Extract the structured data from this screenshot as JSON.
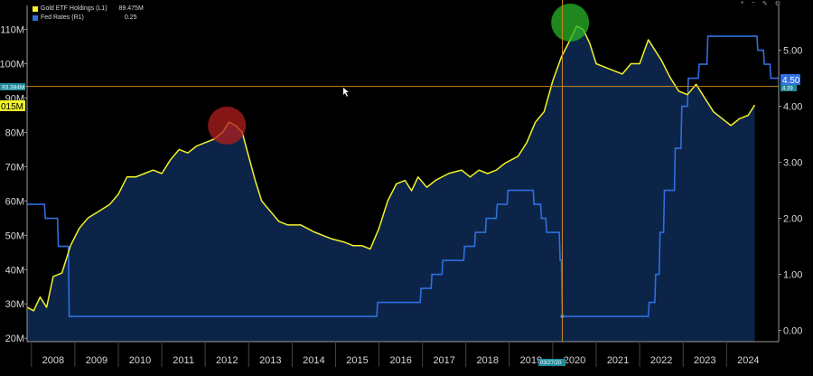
{
  "legend": {
    "gold": {
      "label": "Gold ETF Holdings (L1)",
      "value": "89.475M",
      "color": "#f2f228"
    },
    "fed": {
      "label": "Fed Rates (R1)",
      "value": "0.25",
      "color": "#2f6fe0"
    }
  },
  "toolbar_icons": [
    "plus-icon",
    "minus-icon",
    "edit-icon",
    "settings-icon"
  ],
  "markers": {
    "crosshair_left_label": "93.384M",
    "current_left_label": "015M",
    "current_right_label": "4.50",
    "crosshair_right_label": "4.39",
    "date_label": "03/27/20"
  },
  "chart_data": {
    "type": "line",
    "x_ticks": [
      "2008",
      "2009",
      "2010",
      "2011",
      "2012",
      "2013",
      "2014",
      "2015",
      "2016",
      "2017",
      "2018",
      "2019",
      "2020",
      "2021",
      "2022",
      "2023",
      "2024"
    ],
    "left_axis": {
      "ticks": [
        "20M",
        "30M",
        "40M",
        "50M",
        "60M",
        "70M",
        "80M",
        "90M",
        "100M",
        "110M"
      ],
      "range": [
        19,
        117
      ]
    },
    "right_axis": {
      "ticks": [
        "0.00",
        "1.00",
        "2.00",
        "3.00",
        "4.00",
        "5.00"
      ],
      "range": [
        -0.2,
        5.8
      ]
    },
    "series": [
      {
        "name": "Gold ETF Holdings (L1)",
        "axis": "left",
        "color": "#f2f228",
        "x": [
          2007.9,
          2008.05,
          2008.2,
          2008.35,
          2008.5,
          2008.7,
          2008.9,
          2009.1,
          2009.3,
          2009.55,
          2009.8,
          2010.0,
          2010.2,
          2010.4,
          2010.6,
          2010.8,
          2011.0,
          2011.2,
          2011.4,
          2011.6,
          2011.8,
          2012.0,
          2012.2,
          2012.4,
          2012.55,
          2012.7,
          2012.85,
          2013.0,
          2013.15,
          2013.3,
          2013.5,
          2013.7,
          2013.9,
          2014.2,
          2014.5,
          2014.7,
          2014.9,
          2015.2,
          2015.4,
          2015.6,
          2015.8,
          2016.0,
          2016.2,
          2016.4,
          2016.6,
          2016.75,
          2016.9,
          2017.1,
          2017.3,
          2017.6,
          2017.9,
          2018.1,
          2018.3,
          2018.5,
          2018.7,
          2018.9,
          2019.2,
          2019.4,
          2019.6,
          2019.8,
          2020.0,
          2020.2,
          2020.4,
          2020.55,
          2020.7,
          2020.85,
          2021.0,
          2021.2,
          2021.4,
          2021.6,
          2021.8,
          2022.0,
          2022.2,
          2022.35,
          2022.5,
          2022.7,
          2022.9,
          2023.1,
          2023.3,
          2023.5,
          2023.7,
          2023.9,
          2024.1,
          2024.3,
          2024.5,
          2024.65
        ],
        "y": [
          29,
          28,
          32,
          29,
          38,
          39,
          47,
          52,
          55,
          57,
          59,
          62,
          67,
          67,
          68,
          69,
          68,
          72,
          75,
          74,
          76,
          77,
          78,
          80,
          83,
          82,
          80,
          73,
          66,
          60,
          57,
          54,
          53,
          53,
          51,
          50,
          49,
          48,
          47,
          47,
          46,
          52,
          60,
          65,
          66,
          63,
          67,
          64,
          66,
          68,
          69,
          67,
          69,
          68,
          69,
          71,
          73,
          77,
          83,
          86,
          95,
          102,
          107,
          111,
          110,
          106,
          100,
          99,
          98,
          97,
          100,
          100,
          107,
          104,
          101,
          96,
          92,
          91,
          94,
          90,
          86,
          84,
          82,
          84,
          85,
          88
        ]
      },
      {
        "name": "Fed Rates (R1)",
        "axis": "right",
        "color": "#2f6fe0",
        "x": [
          2007.9,
          2008.0,
          2008.3,
          2008.32,
          2008.6,
          2008.62,
          2008.85,
          2008.87,
          2015.95,
          2015.97,
          2016.95,
          2016.97,
          2017.2,
          2017.22,
          2017.45,
          2017.47,
          2017.95,
          2017.97,
          2018.2,
          2018.22,
          2018.45,
          2018.47,
          2018.7,
          2018.72,
          2018.95,
          2018.97,
          2019.55,
          2019.57,
          2019.72,
          2019.74,
          2019.84,
          2019.86,
          2020.15,
          2020.17,
          2020.2,
          2020.22,
          2022.2,
          2022.22,
          2022.35,
          2022.37,
          2022.45,
          2022.47,
          2022.55,
          2022.57,
          2022.8,
          2022.82,
          2022.95,
          2022.97,
          2023.1,
          2023.12,
          2023.35,
          2023.37,
          2023.55,
          2023.57,
          2024.7,
          2024.72,
          2024.85,
          2024.87,
          2025.0,
          2025.02,
          2025.2
        ],
        "y": [
          2.25,
          2.25,
          2.25,
          2.0,
          2.0,
          1.5,
          1.5,
          0.25,
          0.25,
          0.5,
          0.5,
          0.75,
          0.75,
          1.0,
          1.0,
          1.25,
          1.25,
          1.5,
          1.5,
          1.75,
          1.75,
          2.0,
          2.0,
          2.25,
          2.25,
          2.5,
          2.5,
          2.25,
          2.25,
          2.0,
          2.0,
          1.75,
          1.75,
          1.25,
          1.25,
          0.25,
          0.25,
          0.5,
          0.5,
          1.0,
          1.0,
          1.75,
          1.75,
          2.5,
          2.5,
          3.25,
          3.25,
          4.0,
          4.0,
          4.5,
          4.5,
          4.75,
          4.75,
          5.25,
          5.25,
          5.0,
          5.0,
          4.75,
          4.75,
          4.5,
          4.5
        ]
      }
    ],
    "annotations": [
      {
        "type": "circle",
        "x": 2012.5,
        "y": 82,
        "axis": "left",
        "color": "#b21e1e"
      },
      {
        "type": "circle",
        "x": 2020.4,
        "y": 112,
        "axis": "left",
        "color": "#28b428"
      },
      {
        "type": "hline",
        "y": 93.384,
        "axis": "left",
        "color": "#c8871e"
      },
      {
        "type": "vline",
        "x": 2020.22,
        "color": "#c8871e"
      }
    ],
    "grid": false,
    "legend_position": "top-left"
  }
}
